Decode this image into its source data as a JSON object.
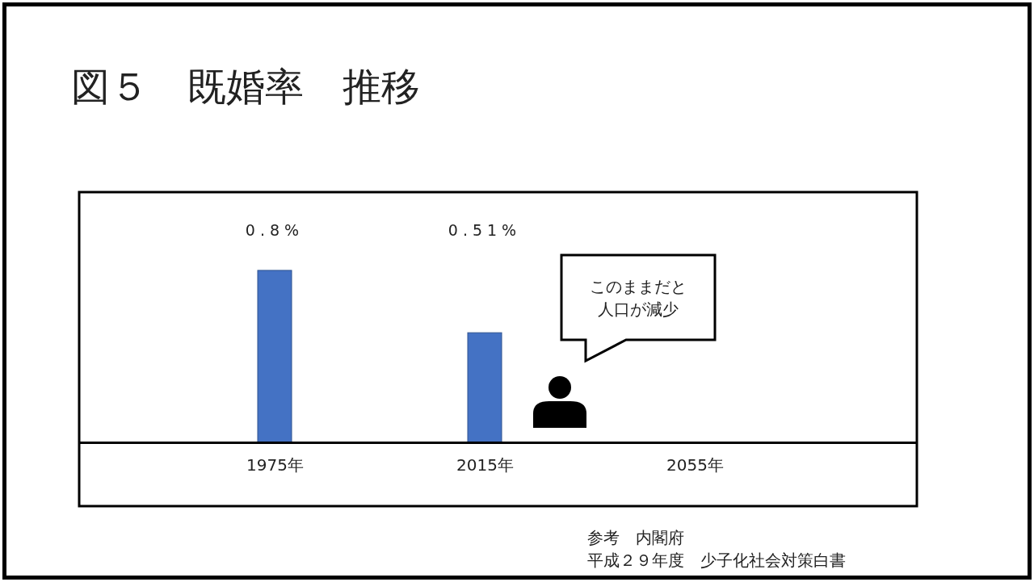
{
  "chart_data": {
    "type": "bar",
    "title": "図５　既婚率　推移",
    "categories": [
      "1975年",
      "2015年",
      "2055年"
    ],
    "values": [
      0.8,
      0.51,
      null
    ],
    "color": "#4472c4",
    "value_labels": [
      "0.8%",
      "0.51%",
      null
    ],
    "annotations": [
      "このままだと人口が減少",
      "参考　内閣府",
      "平成２９年度　少子化社会対策白書"
    ]
  }
}
